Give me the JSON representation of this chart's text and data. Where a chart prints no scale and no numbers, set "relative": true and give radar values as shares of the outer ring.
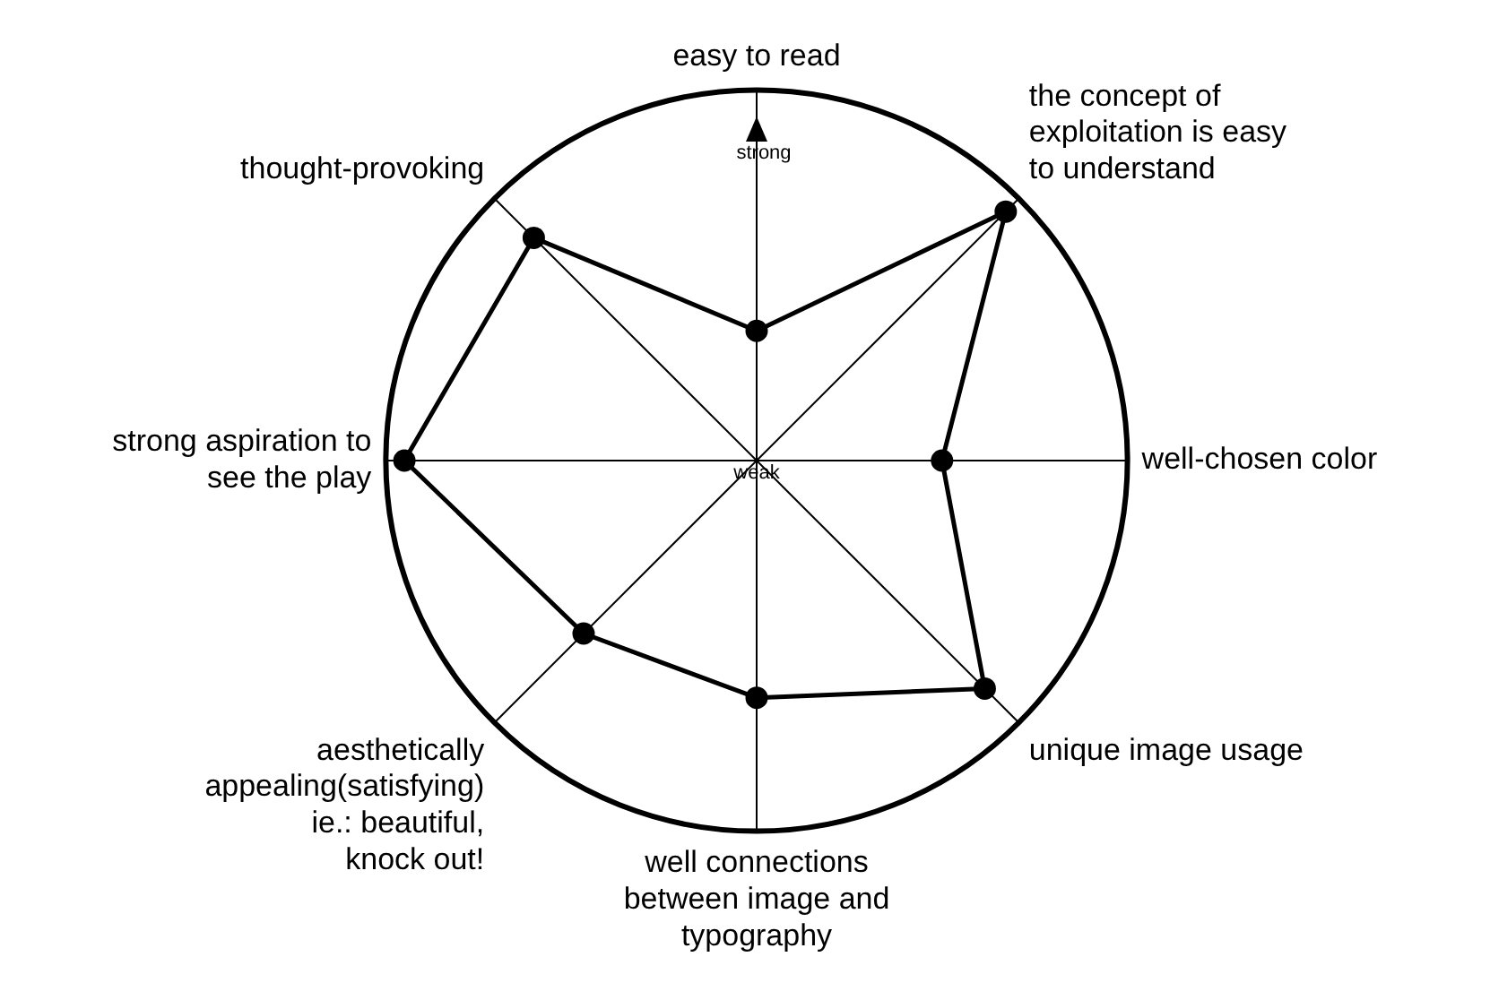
{
  "chart_data": {
    "type": "radar",
    "relative": true,
    "categories": [
      "easy to read",
      "the concept of exploitation is easy to understand",
      "well-chosen color",
      "unique image usage",
      "well connections between image and typography",
      "aesthetically appealing(satisfying) ie.: beautiful, knock out!",
      "strong aspiration to see the play",
      "thought-provoking"
    ],
    "series": [
      {
        "color": "#000000",
        "values": [
          0.35,
          0.95,
          0.5,
          0.87,
          0.64,
          0.66,
          0.95,
          0.85
        ]
      }
    ],
    "marker": "circle",
    "line_style": "solid",
    "legend": false,
    "annotations": [
      "strong",
      "weak"
    ]
  }
}
